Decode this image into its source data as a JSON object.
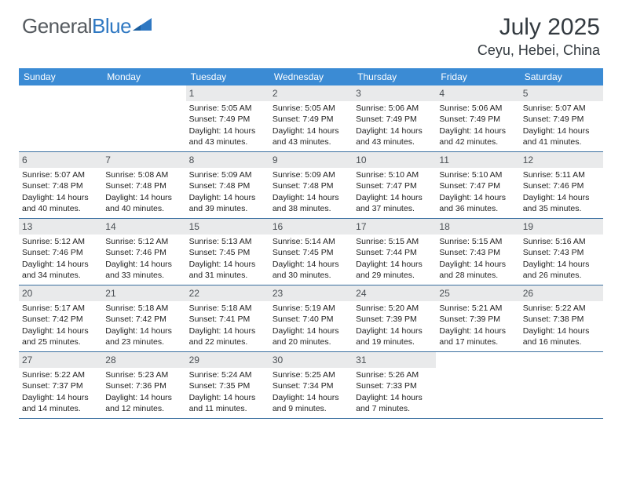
{
  "brand": {
    "part1": "General",
    "part2": "Blue"
  },
  "title": "July 2025",
  "location": "Ceyu, Hebei, China",
  "colors": {
    "header_bar": "#3b8bd4",
    "daynum_bg": "#e9eaeb",
    "week_border": "#3b6fa0",
    "logo_gray": "#555a5f",
    "logo_blue": "#2f78c2",
    "text_dark": "#333a40"
  },
  "dow": [
    "Sunday",
    "Monday",
    "Tuesday",
    "Wednesday",
    "Thursday",
    "Friday",
    "Saturday"
  ],
  "weeks": [
    [
      {
        "n": "",
        "l1": "",
        "l2": "",
        "l3": "",
        "l4": ""
      },
      {
        "n": "",
        "l1": "",
        "l2": "",
        "l3": "",
        "l4": ""
      },
      {
        "n": "1",
        "l1": "Sunrise: 5:05 AM",
        "l2": "Sunset: 7:49 PM",
        "l3": "Daylight: 14 hours",
        "l4": "and 43 minutes."
      },
      {
        "n": "2",
        "l1": "Sunrise: 5:05 AM",
        "l2": "Sunset: 7:49 PM",
        "l3": "Daylight: 14 hours",
        "l4": "and 43 minutes."
      },
      {
        "n": "3",
        "l1": "Sunrise: 5:06 AM",
        "l2": "Sunset: 7:49 PM",
        "l3": "Daylight: 14 hours",
        "l4": "and 43 minutes."
      },
      {
        "n": "4",
        "l1": "Sunrise: 5:06 AM",
        "l2": "Sunset: 7:49 PM",
        "l3": "Daylight: 14 hours",
        "l4": "and 42 minutes."
      },
      {
        "n": "5",
        "l1": "Sunrise: 5:07 AM",
        "l2": "Sunset: 7:49 PM",
        "l3": "Daylight: 14 hours",
        "l4": "and 41 minutes."
      }
    ],
    [
      {
        "n": "6",
        "l1": "Sunrise: 5:07 AM",
        "l2": "Sunset: 7:48 PM",
        "l3": "Daylight: 14 hours",
        "l4": "and 40 minutes."
      },
      {
        "n": "7",
        "l1": "Sunrise: 5:08 AM",
        "l2": "Sunset: 7:48 PM",
        "l3": "Daylight: 14 hours",
        "l4": "and 40 minutes."
      },
      {
        "n": "8",
        "l1": "Sunrise: 5:09 AM",
        "l2": "Sunset: 7:48 PM",
        "l3": "Daylight: 14 hours",
        "l4": "and 39 minutes."
      },
      {
        "n": "9",
        "l1": "Sunrise: 5:09 AM",
        "l2": "Sunset: 7:48 PM",
        "l3": "Daylight: 14 hours",
        "l4": "and 38 minutes."
      },
      {
        "n": "10",
        "l1": "Sunrise: 5:10 AM",
        "l2": "Sunset: 7:47 PM",
        "l3": "Daylight: 14 hours",
        "l4": "and 37 minutes."
      },
      {
        "n": "11",
        "l1": "Sunrise: 5:10 AM",
        "l2": "Sunset: 7:47 PM",
        "l3": "Daylight: 14 hours",
        "l4": "and 36 minutes."
      },
      {
        "n": "12",
        "l1": "Sunrise: 5:11 AM",
        "l2": "Sunset: 7:46 PM",
        "l3": "Daylight: 14 hours",
        "l4": "and 35 minutes."
      }
    ],
    [
      {
        "n": "13",
        "l1": "Sunrise: 5:12 AM",
        "l2": "Sunset: 7:46 PM",
        "l3": "Daylight: 14 hours",
        "l4": "and 34 minutes."
      },
      {
        "n": "14",
        "l1": "Sunrise: 5:12 AM",
        "l2": "Sunset: 7:46 PM",
        "l3": "Daylight: 14 hours",
        "l4": "and 33 minutes."
      },
      {
        "n": "15",
        "l1": "Sunrise: 5:13 AM",
        "l2": "Sunset: 7:45 PM",
        "l3": "Daylight: 14 hours",
        "l4": "and 31 minutes."
      },
      {
        "n": "16",
        "l1": "Sunrise: 5:14 AM",
        "l2": "Sunset: 7:45 PM",
        "l3": "Daylight: 14 hours",
        "l4": "and 30 minutes."
      },
      {
        "n": "17",
        "l1": "Sunrise: 5:15 AM",
        "l2": "Sunset: 7:44 PM",
        "l3": "Daylight: 14 hours",
        "l4": "and 29 minutes."
      },
      {
        "n": "18",
        "l1": "Sunrise: 5:15 AM",
        "l2": "Sunset: 7:43 PM",
        "l3": "Daylight: 14 hours",
        "l4": "and 28 minutes."
      },
      {
        "n": "19",
        "l1": "Sunrise: 5:16 AM",
        "l2": "Sunset: 7:43 PM",
        "l3": "Daylight: 14 hours",
        "l4": "and 26 minutes."
      }
    ],
    [
      {
        "n": "20",
        "l1": "Sunrise: 5:17 AM",
        "l2": "Sunset: 7:42 PM",
        "l3": "Daylight: 14 hours",
        "l4": "and 25 minutes."
      },
      {
        "n": "21",
        "l1": "Sunrise: 5:18 AM",
        "l2": "Sunset: 7:42 PM",
        "l3": "Daylight: 14 hours",
        "l4": "and 23 minutes."
      },
      {
        "n": "22",
        "l1": "Sunrise: 5:18 AM",
        "l2": "Sunset: 7:41 PM",
        "l3": "Daylight: 14 hours",
        "l4": "and 22 minutes."
      },
      {
        "n": "23",
        "l1": "Sunrise: 5:19 AM",
        "l2": "Sunset: 7:40 PM",
        "l3": "Daylight: 14 hours",
        "l4": "and 20 minutes."
      },
      {
        "n": "24",
        "l1": "Sunrise: 5:20 AM",
        "l2": "Sunset: 7:39 PM",
        "l3": "Daylight: 14 hours",
        "l4": "and 19 minutes."
      },
      {
        "n": "25",
        "l1": "Sunrise: 5:21 AM",
        "l2": "Sunset: 7:39 PM",
        "l3": "Daylight: 14 hours",
        "l4": "and 17 minutes."
      },
      {
        "n": "26",
        "l1": "Sunrise: 5:22 AM",
        "l2": "Sunset: 7:38 PM",
        "l3": "Daylight: 14 hours",
        "l4": "and 16 minutes."
      }
    ],
    [
      {
        "n": "27",
        "l1": "Sunrise: 5:22 AM",
        "l2": "Sunset: 7:37 PM",
        "l3": "Daylight: 14 hours",
        "l4": "and 14 minutes."
      },
      {
        "n": "28",
        "l1": "Sunrise: 5:23 AM",
        "l2": "Sunset: 7:36 PM",
        "l3": "Daylight: 14 hours",
        "l4": "and 12 minutes."
      },
      {
        "n": "29",
        "l1": "Sunrise: 5:24 AM",
        "l2": "Sunset: 7:35 PM",
        "l3": "Daylight: 14 hours",
        "l4": "and 11 minutes."
      },
      {
        "n": "30",
        "l1": "Sunrise: 5:25 AM",
        "l2": "Sunset: 7:34 PM",
        "l3": "Daylight: 14 hours",
        "l4": "and 9 minutes."
      },
      {
        "n": "31",
        "l1": "Sunrise: 5:26 AM",
        "l2": "Sunset: 7:33 PM",
        "l3": "Daylight: 14 hours",
        "l4": "and 7 minutes."
      },
      {
        "n": "",
        "l1": "",
        "l2": "",
        "l3": "",
        "l4": ""
      },
      {
        "n": "",
        "l1": "",
        "l2": "",
        "l3": "",
        "l4": ""
      }
    ]
  ]
}
